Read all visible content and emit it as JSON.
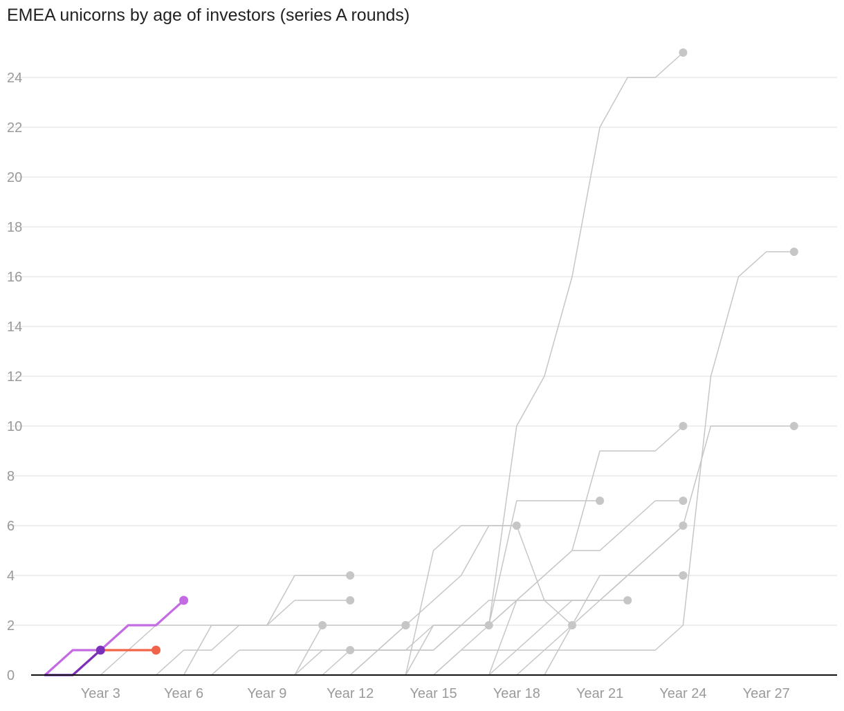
{
  "chart_data": {
    "type": "line",
    "title": "EMEA unicorns by age of investors (series A rounds)",
    "xlabel": "",
    "ylabel": "",
    "xlim": [
      0,
      28.5
    ],
    "ylim": [
      0,
      25
    ],
    "x_ticks": [
      {
        "value": 3,
        "label": "Year 3"
      },
      {
        "value": 6,
        "label": "Year 6"
      },
      {
        "value": 9,
        "label": "Year 9"
      },
      {
        "value": 12,
        "label": "Year 12"
      },
      {
        "value": 15,
        "label": "Year 15"
      },
      {
        "value": 18,
        "label": "Year 18"
      },
      {
        "value": 21,
        "label": "Year 21"
      },
      {
        "value": 24,
        "label": "Year 24"
      },
      {
        "value": 27,
        "label": "Year 27"
      }
    ],
    "y_ticks": [
      0,
      2,
      4,
      6,
      8,
      10,
      12,
      14,
      16,
      18,
      20,
      22,
      24
    ],
    "grid": "horizontal",
    "legend": "none",
    "colors": {
      "background_series": "#c6c6c6",
      "highlight_violet": "#c46be3",
      "highlight_coral": "#f26449",
      "highlight_purple": "#7b30bb",
      "gridline": "#e3e3e3",
      "axis": "#111111"
    },
    "series": [
      {
        "highlight": false,
        "color": "#c6c6c6",
        "x": [
          14,
          15,
          16,
          17,
          18,
          19,
          20,
          21,
          22,
          23,
          24
        ],
        "y": [
          0,
          2,
          2,
          2,
          3,
          3,
          3,
          3,
          4,
          5,
          6
        ]
      },
      {
        "highlight": false,
        "color": "#c6c6c6",
        "x": [
          17,
          18,
          19,
          20,
          21,
          22,
          23,
          24,
          25,
          26,
          27,
          28
        ],
        "y": [
          0,
          1,
          2,
          3,
          3,
          4,
          5,
          6,
          10,
          10,
          10,
          10
        ]
      },
      {
        "highlight": false,
        "color": "#c6c6c6",
        "x": [
          18,
          19,
          20,
          21,
          22,
          23,
          24,
          25,
          26,
          27,
          28
        ],
        "y": [
          0,
          1,
          1,
          1,
          1,
          1,
          2,
          12,
          16,
          17,
          17
        ]
      },
      {
        "highlight": false,
        "color": "#c6c6c6",
        "x": [
          17,
          18,
          19,
          20,
          21,
          22,
          23,
          24
        ],
        "y": [
          0,
          3,
          3,
          3,
          3,
          4,
          4,
          4
        ]
      },
      {
        "highlight": false,
        "color": "#c6c6c6",
        "x": [
          19,
          20,
          21,
          22,
          23,
          24
        ],
        "y": [
          0,
          2,
          4,
          4,
          4,
          4
        ]
      },
      {
        "highlight": false,
        "color": "#c6c6c6",
        "x": [
          11,
          12,
          13,
          14,
          15,
          16,
          17,
          18,
          19,
          20,
          21,
          22,
          23,
          24
        ],
        "y": [
          0,
          1,
          1,
          1,
          2,
          2,
          2,
          3,
          4,
          5,
          9,
          9,
          9,
          10
        ]
      },
      {
        "highlight": false,
        "color": "#c6c6c6",
        "x": [
          10,
          11,
          12,
          13,
          14,
          15,
          16,
          17,
          18,
          19,
          20,
          21,
          22,
          23,
          24
        ],
        "y": [
          0,
          1,
          1,
          1,
          1,
          1,
          2,
          2,
          10,
          12,
          16,
          22,
          24,
          24,
          25
        ]
      },
      {
        "highlight": false,
        "color": "#c6c6c6",
        "x": [
          14,
          15,
          16,
          17,
          18,
          19,
          20
        ],
        "y": [
          0,
          5,
          6,
          6,
          6,
          3,
          2
        ]
      },
      {
        "highlight": false,
        "color": "#c6c6c6",
        "x": [
          12,
          13,
          14,
          15,
          16,
          17,
          18,
          19,
          20,
          21,
          22,
          23,
          24
        ],
        "y": [
          1,
          1,
          1,
          1,
          2,
          3,
          3,
          4,
          5,
          5,
          6,
          7,
          7
        ]
      },
      {
        "highlight": false,
        "color": "#c6c6c6",
        "x": [
          16,
          17,
          18,
          19,
          20,
          21
        ],
        "y": [
          2,
          2,
          7,
          7,
          7,
          7
        ]
      },
      {
        "highlight": false,
        "color": "#c6c6c6",
        "x": [
          13,
          14,
          15,
          16,
          17,
          18
        ],
        "y": [
          1,
          2,
          3,
          4,
          6,
          6
        ]
      },
      {
        "highlight": false,
        "color": "#c6c6c6",
        "x": [
          15,
          16,
          17,
          18,
          19,
          20,
          21,
          22
        ],
        "y": [
          0,
          1,
          1,
          1,
          1,
          2,
          3,
          3
        ]
      },
      {
        "highlight": false,
        "color": "#c6c6c6",
        "x": [
          7,
          8,
          9,
          10,
          11,
          12
        ],
        "y": [
          0,
          1,
          1,
          1,
          1,
          1
        ]
      },
      {
        "highlight": false,
        "color": "#c6c6c6",
        "x": [
          3,
          4,
          5,
          6,
          7,
          8,
          9,
          10,
          11,
          12
        ],
        "y": [
          0,
          1,
          2,
          2,
          2,
          2,
          2,
          4,
          4,
          4
        ]
      },
      {
        "highlight": false,
        "color": "#c6c6c6",
        "x": [
          5,
          6,
          7,
          8,
          9,
          10,
          11,
          12
        ],
        "y": [
          0,
          1,
          1,
          2,
          2,
          3,
          3,
          3
        ]
      },
      {
        "highlight": false,
        "color": "#c6c6c6",
        "x": [
          6,
          7,
          8,
          9,
          10,
          11
        ],
        "y": [
          0,
          2,
          2,
          2,
          2,
          2
        ]
      },
      {
        "highlight": false,
        "color": "#c6c6c6",
        "x": [
          9,
          10,
          11,
          12,
          13,
          14
        ],
        "y": [
          0,
          0,
          0,
          0,
          1,
          2
        ]
      },
      {
        "highlight": false,
        "color": "#c6c6c6",
        "x": [
          10,
          11,
          12,
          13,
          14
        ],
        "y": [
          0,
          2,
          2,
          2,
          2
        ]
      },
      {
        "highlight": false,
        "color": "#c6c6c6",
        "x": [
          12,
          13,
          14
        ],
        "y": [
          0,
          1,
          2
        ]
      },
      {
        "highlight": false,
        "color": "#c6c6c6",
        "x": [
          15,
          16,
          17
        ],
        "y": [
          0,
          1,
          2
        ]
      },
      {
        "highlight": true,
        "color": "#c46be3",
        "x": [
          1,
          2,
          3,
          4,
          5,
          6
        ],
        "y": [
          0,
          1,
          1,
          2,
          2,
          3
        ]
      },
      {
        "highlight": true,
        "color": "#f26449",
        "x": [
          2,
          3,
          4,
          5
        ],
        "y": [
          0,
          1,
          1,
          1
        ]
      },
      {
        "highlight": true,
        "color": "#7b30bb",
        "x": [
          1,
          2,
          3
        ],
        "y": [
          0,
          0,
          1
        ]
      }
    ]
  }
}
